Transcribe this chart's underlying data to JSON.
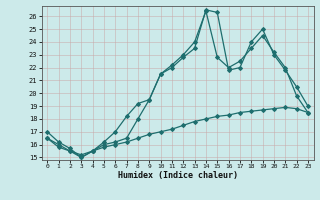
{
  "xlabel": "Humidex (Indice chaleur)",
  "bg_color": "#cceaea",
  "grid_color": "#b8d8d8",
  "line_color": "#1e6e6e",
  "xlim": [
    -0.5,
    23.5
  ],
  "ylim": [
    14.8,
    26.8
  ],
  "xticks": [
    0,
    1,
    2,
    3,
    4,
    5,
    6,
    7,
    8,
    9,
    10,
    11,
    12,
    13,
    14,
    15,
    16,
    17,
    18,
    19,
    20,
    21,
    22,
    23
  ],
  "yticks": [
    15,
    16,
    17,
    18,
    19,
    20,
    21,
    22,
    23,
    24,
    25,
    26
  ],
  "line1_x": [
    0,
    1,
    2,
    3,
    4,
    5,
    6,
    7,
    8,
    9,
    10,
    11,
    12,
    13,
    14,
    15,
    16,
    17,
    18,
    19,
    20,
    21,
    22,
    23
  ],
  "line1_y": [
    17.0,
    16.2,
    15.7,
    15.0,
    15.5,
    16.2,
    17.0,
    18.2,
    19.2,
    19.5,
    21.5,
    22.2,
    23.0,
    24.0,
    26.4,
    22.8,
    22.0,
    22.5,
    23.5,
    24.5,
    23.2,
    22.0,
    19.8,
    18.5
  ],
  "line2_x": [
    0,
    1,
    2,
    3,
    4,
    5,
    6,
    7,
    8,
    9,
    10,
    11,
    12,
    13,
    14,
    15,
    16,
    17,
    18,
    19,
    20,
    21,
    22,
    23
  ],
  "line2_y": [
    16.5,
    16.0,
    15.5,
    15.0,
    15.5,
    16.0,
    16.2,
    16.5,
    18.0,
    19.5,
    21.5,
    22.0,
    22.8,
    23.5,
    26.5,
    26.3,
    21.8,
    22.0,
    24.0,
    25.0,
    23.0,
    21.8,
    20.5,
    19.0
  ],
  "line3_x": [
    0,
    1,
    2,
    3,
    4,
    5,
    6,
    7,
    8,
    9,
    10,
    11,
    12,
    13,
    14,
    15,
    16,
    17,
    18,
    19,
    20,
    21,
    22,
    23
  ],
  "line3_y": [
    16.5,
    15.8,
    15.5,
    15.2,
    15.5,
    15.8,
    16.0,
    16.2,
    16.5,
    16.8,
    17.0,
    17.2,
    17.5,
    17.8,
    18.0,
    18.2,
    18.3,
    18.5,
    18.6,
    18.7,
    18.8,
    18.9,
    18.8,
    18.5
  ]
}
